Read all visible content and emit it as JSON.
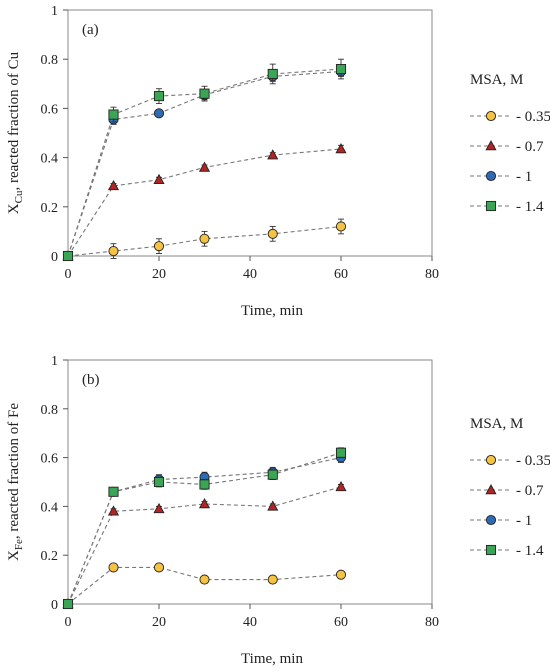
{
  "chart_data": [
    {
      "type": "line",
      "panel_label": "(a)",
      "xlabel": "Time, min",
      "ylabel_main": "X",
      "ylabel_sub": "Cu",
      "ylabel_rest": ", reacted fraction of Cu",
      "xlim": [
        0,
        80
      ],
      "ylim": [
        0,
        1
      ],
      "x_ticks": [
        "0",
        "20",
        "40",
        "60",
        "80"
      ],
      "y_ticks": [
        "0",
        "0.2",
        "0.4",
        "0.6",
        "0.8",
        "1"
      ],
      "legend_title": "MSA, M",
      "series": [
        {
          "name": "0.35",
          "marker": "circle",
          "color": "#f5c242",
          "x": [
            0,
            10,
            20,
            30,
            45,
            60
          ],
          "y": [
            0,
            0.02,
            0.04,
            0.07,
            0.09,
            0.12
          ],
          "err": [
            0,
            0.03,
            0.03,
            0.03,
            0.03,
            0.03
          ]
        },
        {
          "name": "0.7",
          "marker": "triangle",
          "color": "#b32424",
          "x": [
            0,
            10,
            20,
            30,
            45,
            60
          ],
          "y": [
            0,
            0.285,
            0.31,
            0.36,
            0.41,
            0.435
          ],
          "err": [
            0,
            0.01,
            0.01,
            0.01,
            0.01,
            0.015
          ]
        },
        {
          "name": "1",
          "marker": "circle",
          "color": "#2e6bb5",
          "x": [
            0,
            10,
            20,
            30,
            45,
            60
          ],
          "y": [
            0,
            0.555,
            0.58,
            0.655,
            0.73,
            0.75
          ],
          "err": [
            0,
            0.02,
            0.01,
            0.02,
            0.02,
            0.02
          ]
        },
        {
          "name": "1.4",
          "marker": "square",
          "color": "#3aa655",
          "x": [
            0,
            10,
            20,
            30,
            45,
            60
          ],
          "y": [
            0,
            0.575,
            0.65,
            0.66,
            0.74,
            0.76
          ],
          "err": [
            0,
            0.03,
            0.03,
            0.03,
            0.04,
            0.04
          ]
        }
      ]
    },
    {
      "type": "line",
      "panel_label": "(b)",
      "xlabel": "Time, min",
      "ylabel_main": "X",
      "ylabel_sub": "Fe",
      "ylabel_rest": ", reacted fraction of Fe",
      "xlim": [
        0,
        80
      ],
      "ylim": [
        0,
        1
      ],
      "x_ticks": [
        "0",
        "20",
        "40",
        "60",
        "80"
      ],
      "y_ticks": [
        "0",
        "0.2",
        "0.4",
        "0.6",
        "0.8",
        "1"
      ],
      "legend_title": "MSA, M",
      "series": [
        {
          "name": "0.35",
          "marker": "circle",
          "color": "#f5c242",
          "x": [
            0,
            10,
            20,
            30,
            45,
            60
          ],
          "y": [
            0,
            0.15,
            0.15,
            0.1,
            0.1,
            0.12
          ],
          "err": [
            0,
            0.015,
            0.015,
            0.015,
            0.015,
            0.015
          ]
        },
        {
          "name": "0.7",
          "marker": "triangle",
          "color": "#b32424",
          "x": [
            0,
            10,
            20,
            30,
            45,
            60
          ],
          "y": [
            0,
            0.38,
            0.39,
            0.41,
            0.4,
            0.48
          ],
          "err": [
            0,
            0.01,
            0.01,
            0.01,
            0.01,
            0.01
          ]
        },
        {
          "name": "1",
          "marker": "circle",
          "color": "#2e6bb5",
          "x": [
            0,
            10,
            20,
            30,
            45,
            60
          ],
          "y": [
            0,
            0.46,
            0.51,
            0.52,
            0.54,
            0.6
          ],
          "err": [
            0,
            0.01,
            0.02,
            0.02,
            0.02,
            0.02
          ]
        },
        {
          "name": "1.4",
          "marker": "square",
          "color": "#3aa655",
          "x": [
            0,
            10,
            20,
            30,
            45,
            60
          ],
          "y": [
            0,
            0.46,
            0.5,
            0.49,
            0.53,
            0.62
          ],
          "err": [
            0,
            0.01,
            0.02,
            0.02,
            0.02,
            0.02
          ]
        }
      ]
    }
  ]
}
